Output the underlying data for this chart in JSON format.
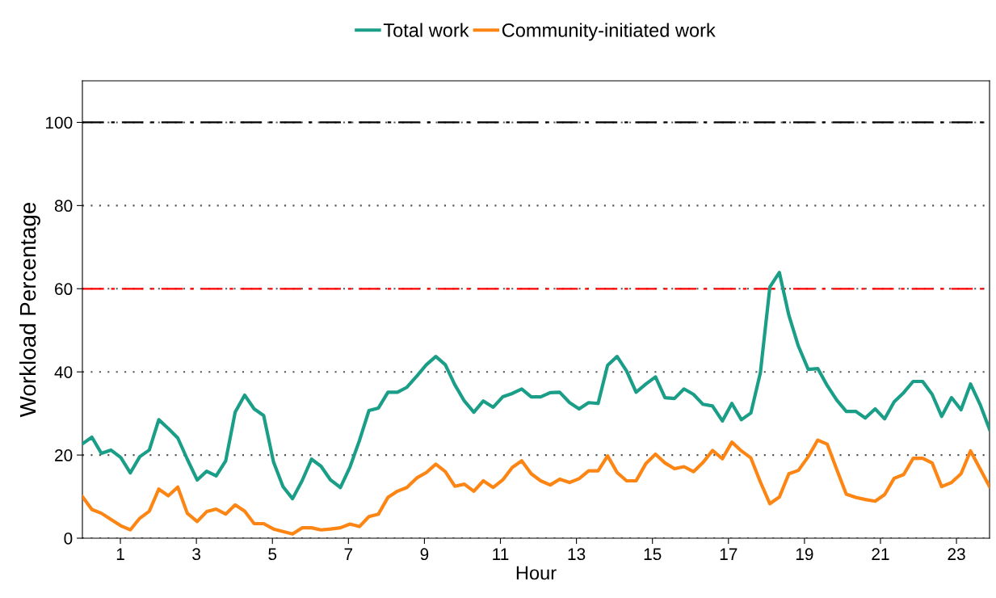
{
  "chart_data": {
    "type": "line",
    "xlabel": "Hour",
    "ylabel": "Workload Percentage",
    "x": [
      0,
      0.25,
      0.5,
      0.75,
      1.01,
      1.26,
      1.51,
      1.76,
      2.01,
      2.26,
      2.51,
      2.76,
      3.02,
      3.27,
      3.52,
      3.77,
      4.02,
      4.27,
      4.52,
      4.77,
      5.03,
      5.28,
      5.53,
      5.78,
      6.03,
      6.28,
      6.53,
      6.79,
      7.04,
      7.29,
      7.54,
      7.79,
      8.04,
      8.29,
      8.54,
      8.8,
      9.05,
      9.3,
      9.55,
      9.8,
      10.05,
      10.3,
      10.55,
      10.81,
      11.06,
      11.31,
      11.56,
      11.81,
      12.06,
      12.31,
      12.56,
      12.82,
      13.07,
      13.32,
      13.57,
      13.82,
      14.07,
      14.32,
      14.57,
      14.83,
      15.08,
      15.33,
      15.58,
      15.83,
      16.08,
      16.33,
      16.58,
      16.84,
      17.09,
      17.34,
      17.59,
      17.84,
      18.09,
      18.34,
      18.59,
      18.84,
      19.1,
      19.35,
      19.6,
      19.85,
      20.1,
      20.35,
      20.6,
      20.86,
      21.11,
      21.36,
      21.61,
      21.86,
      22.11,
      22.36,
      22.61,
      22.87,
      23.12,
      23.37,
      23.62,
      23.87
    ],
    "series": [
      {
        "name": "Total work",
        "color": "#1b9e87",
        "values": [
          22.7,
          24.3,
          20.4,
          21.2,
          19.4,
          15.7,
          19.6,
          21.2,
          28.5,
          26.4,
          24.1,
          19,
          14.0,
          16.1,
          15.0,
          18.6,
          30.3,
          34.4,
          31.1,
          29.5,
          18.3,
          12.4,
          9.5,
          13.8,
          19.0,
          17.3,
          14.0,
          12.2,
          17.1,
          23.5,
          30.7,
          31.3,
          35.1,
          35.1,
          36.3,
          39.0,
          41.7,
          43.7,
          41.7,
          36.9,
          33.0,
          30.3,
          33.0,
          31.5,
          34.0,
          34.8,
          35.9,
          34.0,
          34.0,
          35.0,
          35.1,
          32.6,
          31.1,
          32.6,
          32.4,
          41.6,
          43.7,
          40.2,
          35.1,
          37.1,
          38.8,
          33.8,
          33.6,
          35.9,
          34.6,
          32.2,
          31.8,
          28.2,
          32.4,
          28.5,
          30.1,
          39.8,
          60.4,
          63.9,
          53.6,
          46.2,
          40.6,
          40.8,
          36.7,
          33.2,
          30.5,
          30.5,
          28.9,
          31.1,
          28.7,
          32.8,
          35.0,
          37.7,
          37.7,
          34.6,
          29.3,
          33.8,
          30.9,
          37.1,
          32.2,
          26.2
        ]
      },
      {
        "name": "Community-initiated work",
        "color": "#fd8514",
        "values": [
          10.0,
          6.9,
          6.0,
          4.5,
          3.0,
          2.0,
          4.8,
          6.5,
          11.8,
          10.2,
          12.3,
          6.0,
          4.0,
          6.4,
          7.0,
          5.8,
          8.0,
          6.5,
          3.5,
          3.5,
          2.2,
          1.6,
          1.0,
          2.5,
          2.5,
          2.0,
          2.2,
          2.5,
          3.4,
          2.8,
          5.2,
          5.8,
          9.8,
          11.3,
          12.2,
          14.5,
          15.8,
          17.8,
          16.0,
          12.5,
          13.0,
          11.3,
          13.8,
          12.2,
          14.0,
          17.0,
          18.6,
          15.5,
          13.8,
          12.8,
          14.2,
          13.4,
          14.3,
          16.2,
          16.2,
          19.8,
          15.8,
          13.8,
          13.8,
          18.0,
          20.2,
          18.1,
          16.7,
          17.2,
          16.0,
          18.2,
          21.1,
          19.1,
          23.1,
          21.0,
          19.3,
          13.5,
          8.3,
          9.9,
          15.5,
          16.3,
          19.6,
          23.6,
          22.6,
          16.5,
          10.6,
          9.8,
          9.3,
          8.9,
          10.5,
          14.4,
          15.3,
          19.2,
          19.2,
          18.1,
          12.4,
          13.4,
          15.5,
          21.0,
          16.7,
          12.4
        ]
      }
    ],
    "xlim": [
      0,
      23.87
    ],
    "xticks": [
      1,
      3,
      5,
      7,
      9,
      11,
      13,
      15,
      17,
      19,
      21,
      23
    ],
    "ylim": [
      0,
      110
    ],
    "yticks": [
      0,
      20,
      40,
      60,
      80,
      100
    ],
    "ref_lines": [
      {
        "axis": "y",
        "value": 100,
        "color": "#000000",
        "line_style": "dashdot"
      },
      {
        "axis": "y",
        "value": 60,
        "color": "#ff0000",
        "line_style": "dashdot"
      }
    ],
    "grid": "y",
    "legend": "top",
    "line_style": "solid",
    "marker": "none"
  }
}
